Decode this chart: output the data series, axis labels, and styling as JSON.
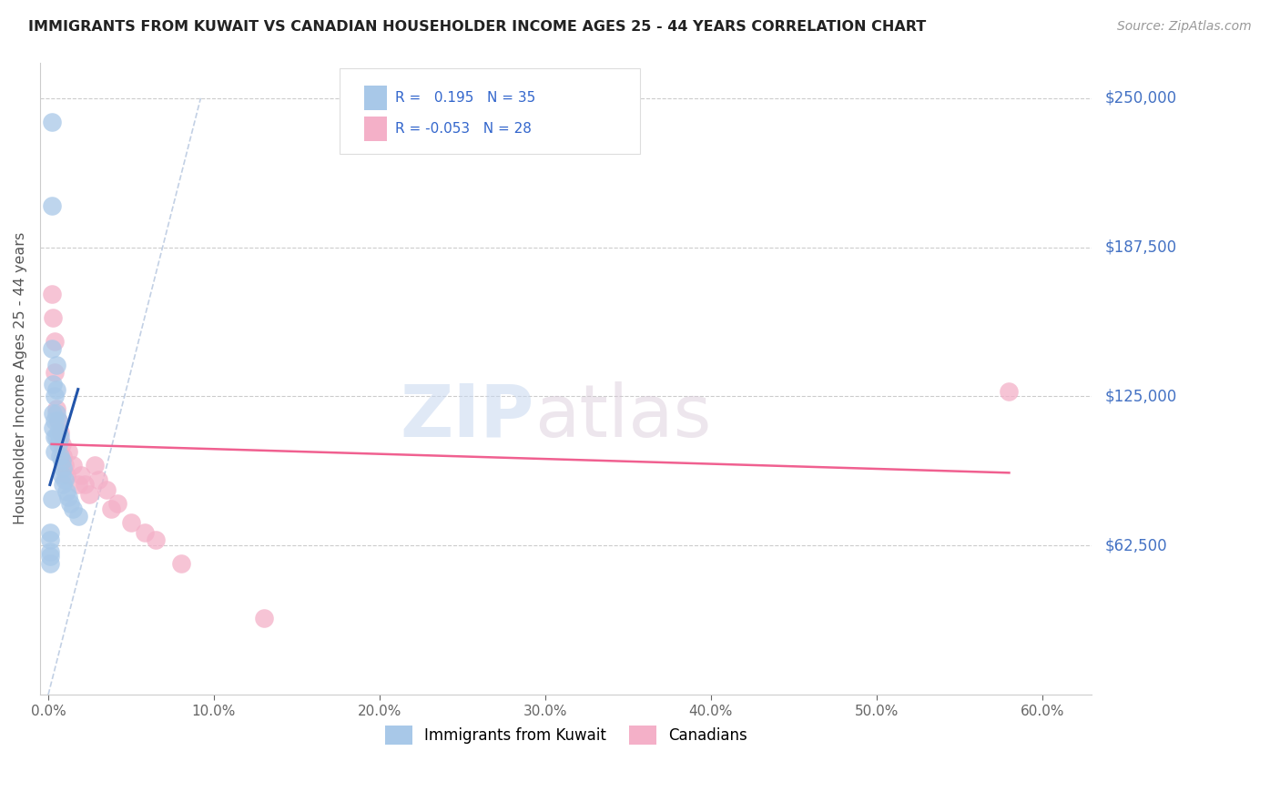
{
  "title": "IMMIGRANTS FROM KUWAIT VS CANADIAN HOUSEHOLDER INCOME AGES 25 - 44 YEARS CORRELATION CHART",
  "source": "Source: ZipAtlas.com",
  "ylabel": "Householder Income Ages 25 - 44 years",
  "xlabel_ticks": [
    "0.0%",
    "10.0%",
    "20.0%",
    "30.0%",
    "40.0%",
    "50.0%",
    "60.0%"
  ],
  "xlabel_vals": [
    0.0,
    0.1,
    0.2,
    0.3,
    0.4,
    0.5,
    0.6
  ],
  "ytick_labels": [
    "$62,500",
    "$125,000",
    "$187,500",
    "$250,000"
  ],
  "ytick_vals": [
    62500,
    125000,
    187500,
    250000
  ],
  "xlim": [
    -0.005,
    0.63
  ],
  "ylim": [
    0,
    265000
  ],
  "r_kuwait": 0.195,
  "n_kuwait": 35,
  "r_canada": -0.053,
  "n_canada": 28,
  "watermark_zip": "ZIP",
  "watermark_atlas": "atlas",
  "kuwait_color": "#a8c8e8",
  "canada_color": "#f4b0c8",
  "kuwait_line_color": "#2255aa",
  "canada_line_color": "#f06090",
  "diag_line_color": "#b8c8e0",
  "kuwait_scatter_x": [
    0.001,
    0.001,
    0.001,
    0.001,
    0.001,
    0.002,
    0.002,
    0.002,
    0.002,
    0.003,
    0.003,
    0.003,
    0.004,
    0.004,
    0.004,
    0.004,
    0.005,
    0.005,
    0.005,
    0.005,
    0.006,
    0.006,
    0.006,
    0.007,
    0.007,
    0.008,
    0.008,
    0.009,
    0.009,
    0.01,
    0.011,
    0.012,
    0.013,
    0.015,
    0.018
  ],
  "kuwait_scatter_y": [
    68000,
    65000,
    60000,
    58000,
    55000,
    240000,
    205000,
    145000,
    82000,
    130000,
    118000,
    112000,
    125000,
    115000,
    108000,
    102000,
    138000,
    128000,
    118000,
    108000,
    115000,
    110000,
    105000,
    108000,
    100000,
    98000,
    92000,
    95000,
    88000,
    90000,
    85000,
    83000,
    80000,
    78000,
    75000
  ],
  "canada_scatter_x": [
    0.002,
    0.003,
    0.004,
    0.004,
    0.005,
    0.006,
    0.007,
    0.008,
    0.009,
    0.01,
    0.011,
    0.012,
    0.015,
    0.018,
    0.02,
    0.022,
    0.025,
    0.028,
    0.03,
    0.035,
    0.038,
    0.042,
    0.05,
    0.058,
    0.065,
    0.08,
    0.13,
    0.58
  ],
  "canada_scatter_y": [
    168000,
    158000,
    148000,
    135000,
    120000,
    115000,
    110000,
    105000,
    100000,
    96000,
    92000,
    102000,
    96000,
    88000,
    92000,
    88000,
    84000,
    96000,
    90000,
    86000,
    78000,
    80000,
    72000,
    68000,
    65000,
    55000,
    32000,
    127000
  ],
  "kuwait_line_x": [
    0.001,
    0.018
  ],
  "kuwait_line_y": [
    88000,
    128000
  ],
  "canada_line_x": [
    0.002,
    0.58
  ],
  "canada_line_y": [
    105000,
    93000
  ]
}
